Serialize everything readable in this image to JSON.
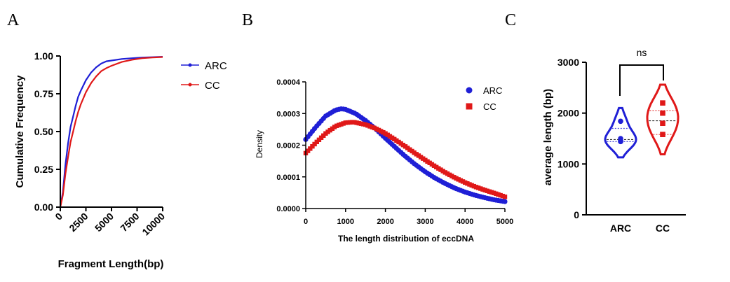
{
  "chart_data": [
    {
      "panel": "A",
      "type": "line",
      "xlabel": "Fragment Length(bp)",
      "ylabel": "Cumulative Frequency",
      "xlim": [
        0,
        10000
      ],
      "ylim": [
        0,
        1
      ],
      "x_ticks": [
        0,
        2500,
        5000,
        7500,
        10000
      ],
      "x_tick_labels": [
        "0",
        "2500",
        "5000",
        "7500",
        "10000"
      ],
      "y_ticks": [
        0,
        0.25,
        0.5,
        0.75,
        1.0
      ],
      "y_tick_labels": [
        "0.00",
        "0.25",
        "0.50",
        "0.75",
        "1.00"
      ],
      "legend": [
        "ARC",
        "CC"
      ],
      "series": [
        {
          "name": "ARC",
          "color": "#1f1fd6",
          "x": [
            0,
            250,
            500,
            750,
            1000,
            1250,
            1500,
            1750,
            2000,
            2500,
            3000,
            3500,
            4000,
            4500,
            5000,
            6000,
            7000,
            8000,
            9000,
            10000
          ],
          "y": [
            0.0,
            0.1,
            0.28,
            0.42,
            0.53,
            0.6,
            0.67,
            0.73,
            0.77,
            0.84,
            0.89,
            0.925,
            0.95,
            0.965,
            0.97,
            0.98,
            0.985,
            0.99,
            0.992,
            0.995
          ]
        },
        {
          "name": "CC",
          "color": "#e01818",
          "x": [
            0,
            250,
            500,
            750,
            1000,
            1250,
            1500,
            1750,
            2000,
            2500,
            3000,
            3500,
            4000,
            4500,
            5000,
            6000,
            7000,
            8000,
            9000,
            10000
          ],
          "y": [
            0.0,
            0.08,
            0.22,
            0.33,
            0.43,
            0.5,
            0.57,
            0.63,
            0.68,
            0.76,
            0.82,
            0.865,
            0.9,
            0.92,
            0.935,
            0.96,
            0.975,
            0.985,
            0.99,
            0.993
          ]
        }
      ]
    },
    {
      "panel": "B",
      "type": "scatter",
      "xlabel": "The length distribution of eccDNA",
      "ylabel": "Density",
      "xlim": [
        0,
        5000
      ],
      "ylim": [
        0,
        0.0004
      ],
      "x_ticks": [
        0,
        1000,
        2000,
        3000,
        4000,
        5000
      ],
      "x_tick_labels": [
        "0",
        "1000",
        "2000",
        "3000",
        "4000",
        "5000"
      ],
      "y_ticks": [
        0,
        0.0001,
        0.0002,
        0.0003,
        0.0004
      ],
      "y_tick_labels": [
        "0.0000",
        "0.0001",
        "0.0002",
        "0.0003",
        "0.0004"
      ],
      "legend": [
        "ARC",
        "CC"
      ],
      "series": [
        {
          "name": "ARC",
          "color": "#1f1fd6",
          "marker": "circle",
          "x": [
            0,
            250,
            500,
            750,
            900,
            1000,
            1250,
            1500,
            1750,
            2000,
            2250,
            2500,
            2750,
            3000,
            3250,
            3500,
            3750,
            4000,
            4250,
            4500,
            4750,
            5000
          ],
          "y": [
            0.000218,
            0.000257,
            0.000292,
            0.000311,
            0.000315,
            0.000313,
            0.0003,
            0.000278,
            0.000252,
            0.000222,
            0.000193,
            0.000165,
            0.000139,
            0.000116,
            9.6e-05,
            7.9e-05,
            6.4e-05,
            5.2e-05,
            4.2e-05,
            3.4e-05,
            2.7e-05,
            2.2e-05
          ]
        },
        {
          "name": "CC",
          "color": "#e01818",
          "marker": "square",
          "x": [
            0,
            250,
            500,
            750,
            1000,
            1200,
            1500,
            1750,
            2000,
            2250,
            2500,
            2750,
            3000,
            3250,
            3500,
            3750,
            4000,
            4250,
            4500,
            4750,
            5000
          ],
          "y": [
            0.000175,
            0.000207,
            0.000237,
            0.00026,
            0.000271,
            0.000273,
            0.000265,
            0.000253,
            0.000237,
            0.000217,
            0.000196,
            0.000174,
            0.000153,
            0.000133,
            0.000114,
            9.7e-05,
            8.2e-05,
            6.9e-05,
            5.8e-05,
            4.8e-05,
            3.7e-05
          ]
        }
      ]
    },
    {
      "panel": "C",
      "type": "violin",
      "xlabel": "",
      "ylabel": "average length (bp)",
      "ylim": [
        0,
        3000
      ],
      "y_ticks": [
        0,
        1000,
        2000,
        3000
      ],
      "y_tick_labels": [
        "0",
        "1000",
        "2000",
        "3000"
      ],
      "categories": [
        "ARC",
        "CC"
      ],
      "significance": "ns",
      "series": [
        {
          "name": "ARC",
          "color": "#1f1fd6",
          "marker": "circle",
          "points": [
            1840,
            1500,
            1460,
            1440
          ],
          "median": 1480,
          "q1": 1440,
          "q3": 1700,
          "min": 1130,
          "max": 2100
        },
        {
          "name": "CC",
          "color": "#e01818",
          "marker": "square",
          "points": [
            2200,
            2000,
            1800,
            1580
          ],
          "median": 1850,
          "q1": 1580,
          "q3": 2050,
          "min": 1190,
          "max": 2560
        }
      ]
    }
  ]
}
